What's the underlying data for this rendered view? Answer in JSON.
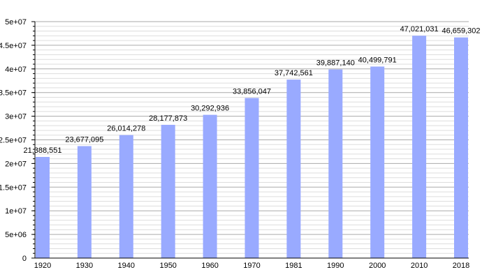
{
  "chart_data": {
    "type": "bar",
    "title": "",
    "xlabel": "",
    "ylabel": "",
    "categories": [
      "1920",
      "1930",
      "1940",
      "1950",
      "1960",
      "1970",
      "1981",
      "1990",
      "2000",
      "2010",
      "2018"
    ],
    "values": [
      21388551,
      23677095,
      26014278,
      28177873,
      30292936,
      33856047,
      37742561,
      39887140,
      40499791,
      47021031,
      46659302
    ],
    "data_labels": [
      "21,388,551",
      "23,677,095",
      "26,014,278",
      "28,177,873",
      "30,292,936",
      "33,856,047",
      "37,742,561",
      "39,887,140",
      "40,499,791",
      "47,021,031",
      "46,659,302"
    ],
    "ylim": [
      0,
      50000000
    ],
    "yticks": [
      0,
      5000000,
      10000000,
      15000000,
      20000000,
      25000000,
      30000000,
      35000000,
      40000000,
      45000000,
      50000000
    ],
    "ytick_labels": [
      "0",
      "5e+06",
      "1e+07",
      "1.5e+07",
      "2e+07",
      "2.5e+07",
      "3e+07",
      "3.5e+07",
      "4e+07",
      "4.5e+07",
      "5e+07"
    ],
    "minor_grid_step": 1000000,
    "grid": true,
    "bar_color": "#99aaff",
    "major_grid_color": "#aaaaaa",
    "minor_grid_color": "#dddddd"
  }
}
